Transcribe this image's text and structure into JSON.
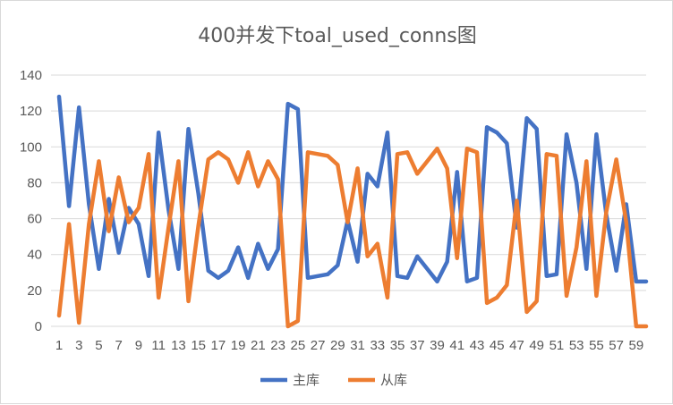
{
  "chart_data": {
    "type": "line",
    "title": "400并发下toal_used_conns图",
    "xlabel": "",
    "ylabel": "",
    "ylim": [
      0,
      140
    ],
    "yticks": [
      0,
      20,
      40,
      60,
      80,
      100,
      120,
      140
    ],
    "x": [
      1,
      2,
      3,
      4,
      5,
      6,
      7,
      8,
      9,
      10,
      11,
      12,
      13,
      14,
      15,
      16,
      17,
      18,
      19,
      20,
      21,
      22,
      23,
      24,
      25,
      26,
      27,
      28,
      29,
      30,
      31,
      32,
      33,
      34,
      35,
      36,
      37,
      38,
      39,
      40,
      41,
      42,
      43,
      44,
      45,
      46,
      47,
      48,
      49,
      50,
      51,
      52,
      53,
      54,
      55,
      56,
      57,
      58,
      59,
      60
    ],
    "xtick_labels": [
      "1",
      "3",
      "5",
      "7",
      "9",
      "11",
      "13",
      "15",
      "17",
      "19",
      "21",
      "23",
      "25",
      "27",
      "29",
      "31",
      "33",
      "35",
      "37",
      "39",
      "41",
      "43",
      "45",
      "47",
      "49",
      "51",
      "53",
      "55",
      "57",
      "59"
    ],
    "grid": true,
    "legend_position": "bottom",
    "series": [
      {
        "name": "主库",
        "color": "#4472c4",
        "values": [
          128,
          67,
          122,
          68,
          32,
          71,
          41,
          66,
          57,
          28,
          108,
          65,
          32,
          110,
          74,
          31,
          27,
          31,
          44,
          27,
          46,
          32,
          43,
          124,
          121,
          27,
          28,
          29,
          34,
          59,
          36,
          85,
          78,
          108,
          28,
          27,
          39,
          32,
          25,
          36,
          86,
          25,
          27,
          111,
          108,
          102,
          55,
          116,
          110,
          28,
          29,
          107,
          80,
          32,
          107,
          62,
          31,
          68,
          25,
          25
        ]
      },
      {
        "name": "从库",
        "color": "#ed7d31",
        "values": [
          6,
          57,
          2,
          57,
          92,
          53,
          83,
          58,
          66,
          96,
          16,
          55,
          92,
          14,
          56,
          93,
          97,
          93,
          80,
          97,
          78,
          92,
          82,
          0,
          3,
          97,
          96,
          95,
          90,
          58,
          88,
          39,
          46,
          16,
          96,
          97,
          85,
          92,
          99,
          88,
          38,
          99,
          97,
          13,
          16,
          23,
          70,
          8,
          14,
          96,
          95,
          17,
          44,
          92,
          17,
          64,
          93,
          58,
          0,
          0
        ]
      }
    ]
  }
}
